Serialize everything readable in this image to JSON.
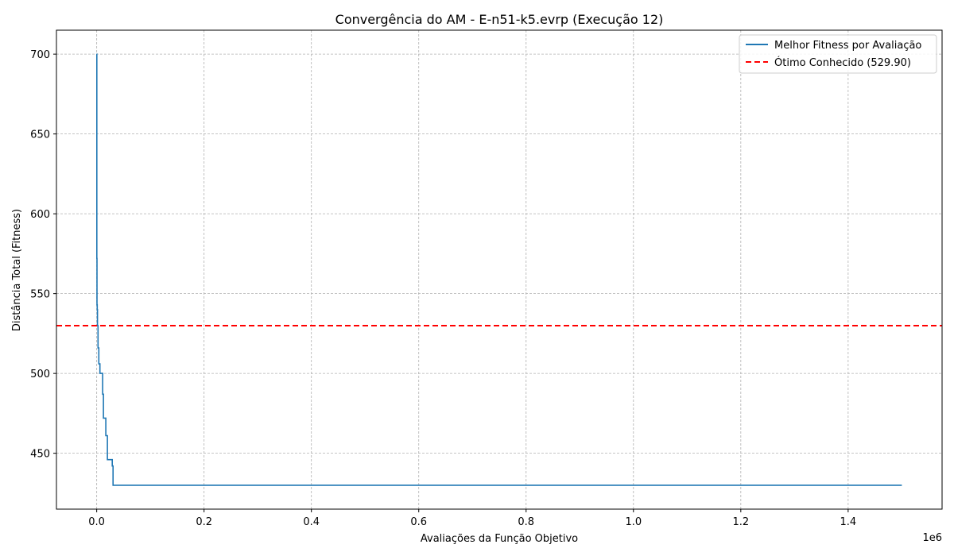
{
  "chart_data": {
    "type": "line",
    "title": "Convergência do AM - E-n51-k5.evrp (Execução 12)",
    "xlabel": "Avaliações da Função Objetivo",
    "ylabel": "Distância Total (Fitness)",
    "x_offset_label": "1e6",
    "x_scale": 1000000,
    "xlim": [
      -75000,
      1575000
    ],
    "ylim": [
      415,
      715
    ],
    "xticks": [
      0,
      200000,
      400000,
      600000,
      800000,
      1000000,
      1200000,
      1400000
    ],
    "xtick_labels": [
      "0.0",
      "0.2",
      "0.4",
      "0.6",
      "0.8",
      "1.0",
      "1.2",
      "1.4"
    ],
    "yticks": [
      450,
      500,
      550,
      600,
      650,
      700
    ],
    "ytick_labels": [
      "450",
      "500",
      "550",
      "600",
      "650",
      "700"
    ],
    "grid": true,
    "legend_position": "top-right",
    "series": [
      {
        "name": "Melhor Fitness por Avaliação",
        "color": "#1f77b4",
        "style": "step",
        "x": [
          0,
          300,
          600,
          1000,
          1500,
          2500,
          4000,
          6000,
          9000,
          11000,
          12500,
          14000,
          17000,
          20000,
          27000,
          29000,
          30500,
          1500000
        ],
        "y": [
          700,
          572,
          543,
          540,
          530,
          516,
          506,
          500,
          500,
          487,
          472,
          472,
          461,
          446,
          446,
          442,
          430,
          430
        ]
      },
      {
        "name": "Ótimo Conhecido (529.90)",
        "color": "#ff0000",
        "style": "dashed-hline",
        "value": 529.9
      }
    ]
  }
}
